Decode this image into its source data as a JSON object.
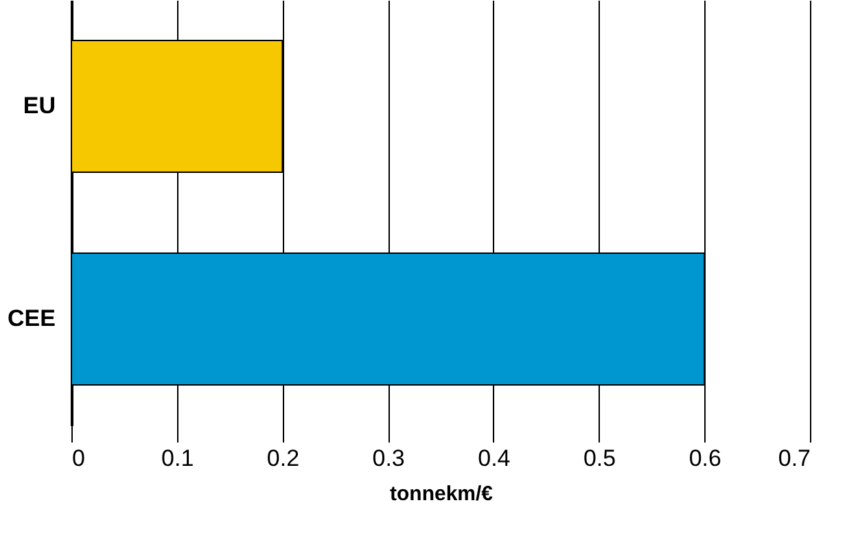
{
  "chart_data": {
    "type": "bar",
    "orientation": "horizontal",
    "xlabel": "tonnekm/€",
    "categories": [
      "EU",
      "CEE"
    ],
    "values": [
      0.2,
      0.6
    ],
    "colors": [
      "#f5c800",
      "#0096d0"
    ],
    "xlim": [
      0,
      0.7
    ],
    "xticks": [
      0,
      0.1,
      0.2,
      0.3,
      0.4,
      0.5,
      0.6,
      0.7
    ],
    "grid": "x"
  }
}
